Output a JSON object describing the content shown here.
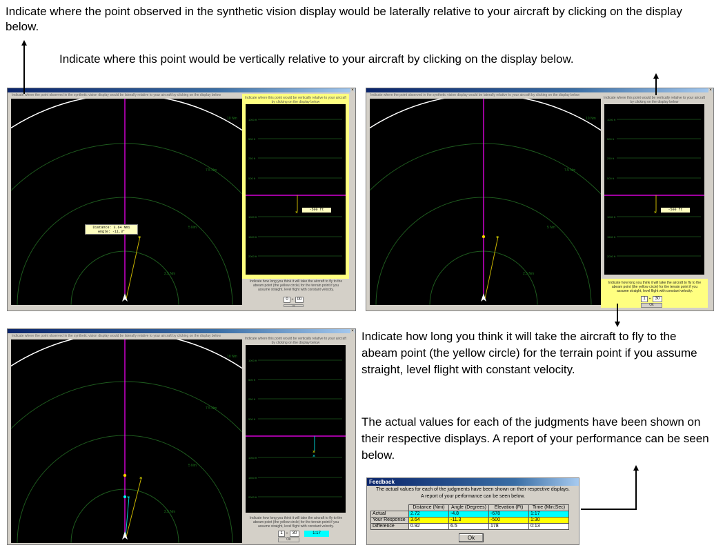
{
  "captions": {
    "lateral": "Indicate where the point observed in the synthetic vision display would be laterally relative to your aircraft by clicking on the display below.",
    "vertical": "Indicate where this point would be vertically relative to your aircraft by clicking on the display below.",
    "time": "Indicate how long you think it will take the aircraft to fly to the abeam point (the yellow circle) for the terrain point if you assume straight, level flight with constant velocity.",
    "actual": "The actual values for each of the judgments have been shown on their respective displays. A report of your performance can be seen below."
  },
  "screens": {
    "lateral_instruction": "Indicate where the point observed in the synthetic vision display would be laterally relative to your aircraft by clicking on the display below",
    "vertical_instruction": "Indicate where this point would be vertically relative to your aircraft by clicking on the display below",
    "time_instruction": "Indicate how long you think it will take the aircraft to fly to the abeam point (the yellow circle) for the terrain point if you assume straight, level flight with constant velocity.",
    "range_labels": [
      "10 Nm",
      "7.5 Nm",
      "5 Nm",
      "2.5 Nm"
    ],
    "altitude_labels": [
      "1500 ft",
      "1000 ft",
      "500 ft",
      "250 ft",
      "500 ft",
      "1000 ft",
      "1500 ft",
      "2000 ft"
    ],
    "distance_readout": "Distance: 3.64 Nmi",
    "angle_readout": "Angle: -11.3°",
    "elevation_readout": "-500 ft",
    "spinner_min_a": "0",
    "spinner_sec_a": "00",
    "spinner_min": "1",
    "spinner_sec": "30",
    "ok_label": "Ok",
    "actual_time": "1:17"
  },
  "feedback": {
    "title": "Feedback",
    "message_line1": "The actual values for each of the judgments have been shown on their respective displays.",
    "message_line2": "A report of your performance can be seen below.",
    "headers": [
      "",
      "Distance (Nmi)",
      "Angle (Degrees)",
      "Elevation (Ft)",
      "Time (Min:Sec)"
    ],
    "rows": [
      {
        "label": "Actual",
        "values": [
          "2.72",
          "-4.8",
          "-678",
          "1:17"
        ]
      },
      {
        "label": "Your Response",
        "values": [
          "3.64",
          "-11.3",
          "-500",
          "1:30"
        ]
      },
      {
        "label": "Difference",
        "values": [
          "0.92",
          "6.5",
          "178",
          "0:13"
        ]
      }
    ],
    "ok_label": "Ok"
  },
  "colors": {
    "actual_row": "#00ffff",
    "response_row": "#ffff00",
    "magenta_line": "#ff00ff",
    "range_ring": "#1e5a1e",
    "yellow_panel": "#ffff80"
  }
}
